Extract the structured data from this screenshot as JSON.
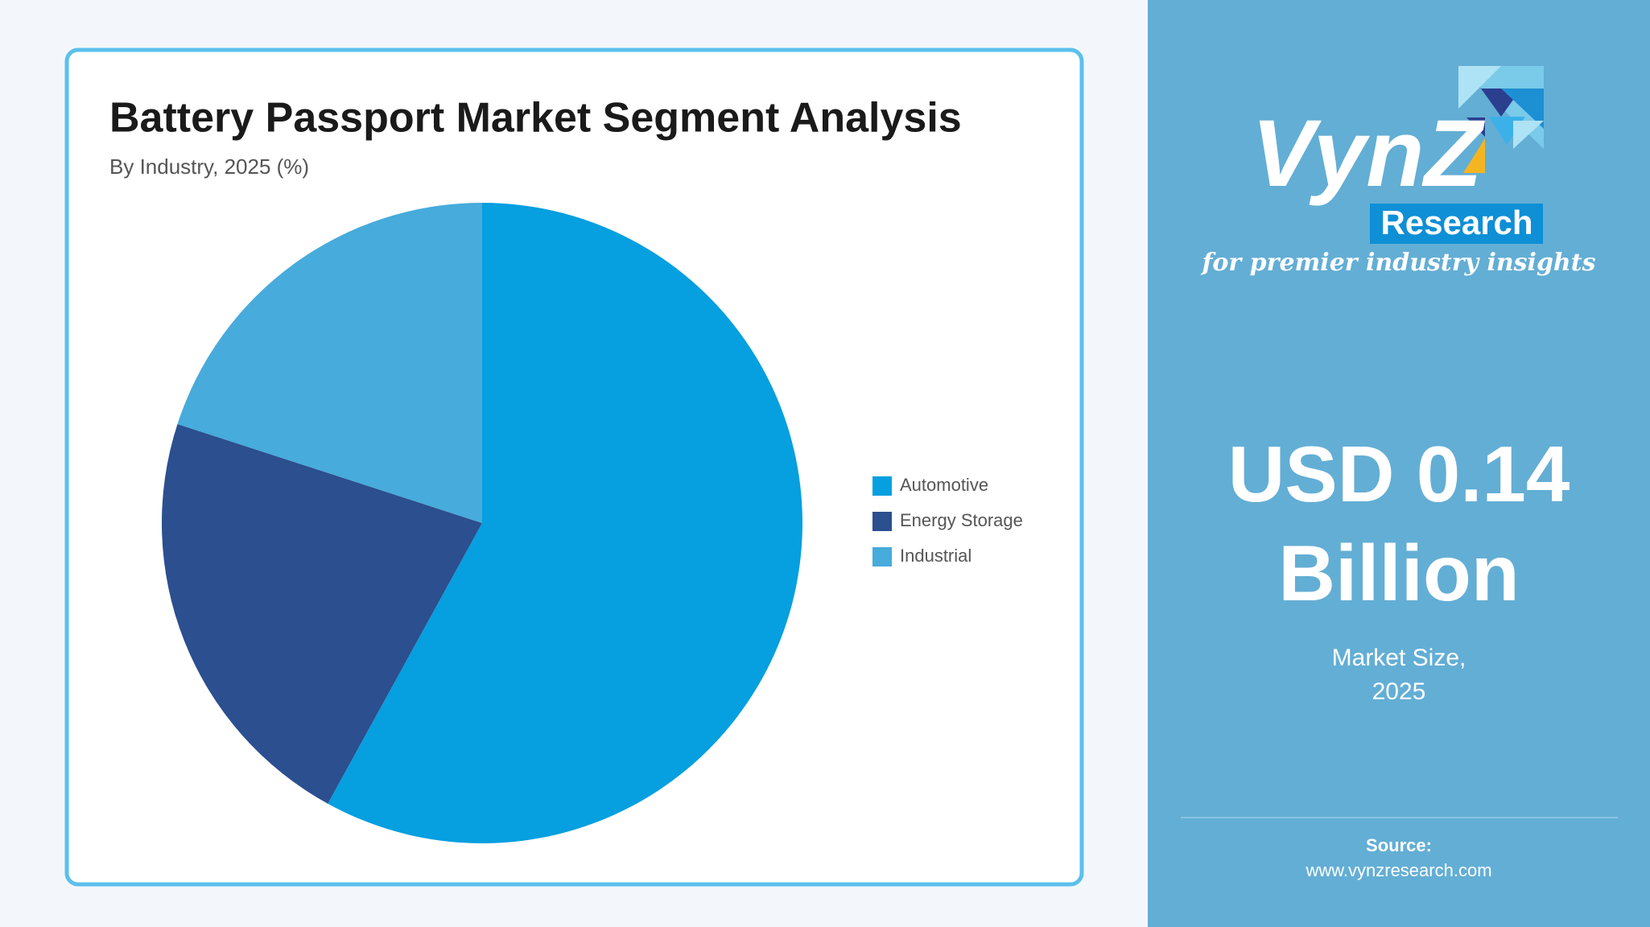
{
  "chart_data": {
    "type": "pie",
    "title": "Battery Passport Market Segment Analysis",
    "subtitle": "By Industry, 2025 (%)",
    "categories": [
      "Automotive",
      "Energy Storage",
      "Industrial"
    ],
    "values": [
      58,
      22,
      20
    ],
    "colors": [
      "#069fdf",
      "#2b4f8f",
      "#47abdb"
    ],
    "legend": "right"
  },
  "panel": {
    "logo": {
      "name": "VynZ",
      "badge": "Research",
      "tagline": "for premier industry insights"
    },
    "value": "USD 0.14",
    "unit": "Billion",
    "caption": [
      "Market Size,",
      "2025"
    ],
    "source_label": "Source:",
    "source_url": "www.vynzresearch.com"
  }
}
